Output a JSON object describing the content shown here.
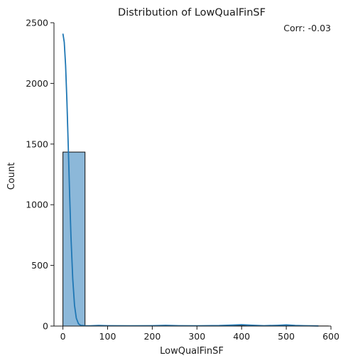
{
  "chart_data": {
    "type": "bar",
    "title": "Distribution of LowQualFinSF",
    "xlabel": "LowQualFinSF",
    "ylabel": "Count",
    "annotation": "Corr: -0.03",
    "xlim": [
      -20,
      600
    ],
    "ylim": [
      0,
      2500
    ],
    "xticks": [
      0,
      100,
      200,
      300,
      400,
      500,
      600
    ],
    "yticks": [
      0,
      500,
      1000,
      1500,
      2000,
      2500
    ],
    "bin_width": 49.5,
    "bins": [
      {
        "x0": 0,
        "x1": 49.5,
        "count": 1434
      },
      {
        "x0": 49.5,
        "x1": 99,
        "count": 3
      },
      {
        "x0": 99,
        "x1": 148.5,
        "count": 3
      },
      {
        "x0": 148.5,
        "x1": 198,
        "count": 2
      },
      {
        "x0": 198,
        "x1": 247.5,
        "count": 3
      },
      {
        "x0": 247.5,
        "x1": 297,
        "count": 0
      },
      {
        "x0": 297,
        "x1": 346.5,
        "count": 1
      },
      {
        "x0": 346.5,
        "x1": 396,
        "count": 5
      },
      {
        "x0": 396,
        "x1": 445.5,
        "count": 3
      },
      {
        "x0": 445.5,
        "x1": 495,
        "count": 2
      },
      {
        "x0": 495,
        "x1": 544.5,
        "count": 3
      },
      {
        "x0": 544.5,
        "x1": 594,
        "count": 1
      }
    ],
    "kde": {
      "x": [
        0,
        3,
        6,
        9,
        12,
        15,
        18,
        22,
        26,
        30,
        35,
        40,
        50,
        60,
        80,
        100,
        150,
        200,
        230,
        260,
        300,
        350,
        380,
        400,
        420,
        450,
        480,
        500,
        520,
        540,
        572
      ],
      "y": [
        2410,
        2340,
        2150,
        1850,
        1480,
        1090,
        740,
        390,
        170,
        65,
        18,
        6,
        3,
        2,
        5,
        3,
        2,
        3,
        6,
        3,
        2,
        4,
        8,
        11,
        7,
        3,
        6,
        9,
        5,
        3,
        1
      ]
    },
    "colors": {
      "bar_fill": "#8cb8d9",
      "bar_edge": "#111111",
      "kde_line": "#1f77b4",
      "axis": "#1a1a1a"
    }
  }
}
